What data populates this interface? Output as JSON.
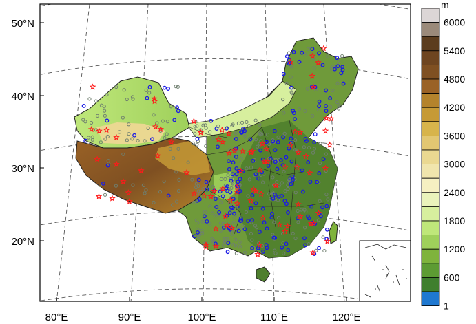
{
  "map": {
    "lat_labels": [
      "50°N",
      "40°N",
      "30°N",
      "20°N"
    ],
    "lon_labels": [
      "80°E",
      "90°E",
      "100°E",
      "110°E",
      "120°E"
    ]
  },
  "legend": {
    "unit": "m",
    "labels": [
      "6000",
      "5400",
      "4800",
      "4200",
      "3600",
      "3000",
      "2400",
      "1800",
      "1200",
      "600",
      "1"
    ],
    "colors": [
      "#dcd6d6",
      "#9b8a7a",
      "#5c3d1e",
      "#6e4520",
      "#7f5022",
      "#9a6226",
      "#b4832c",
      "#c69a36",
      "#d7b44b",
      "#e2c772",
      "#ead891",
      "#f0e5ad",
      "#f6f0c2",
      "#eaf3bb",
      "#d7ef9e",
      "#bfe77a",
      "#9fd05b",
      "#7fb33c",
      "#5d9b33",
      "#3f7f2e",
      "#1f78d0"
    ]
  },
  "markers": {
    "station_colors": {
      "open_circle_gray": "#6f7f6f",
      "open_circle_blue": "#1a1ae6",
      "star_red": "#ff1a1a"
    }
  }
}
